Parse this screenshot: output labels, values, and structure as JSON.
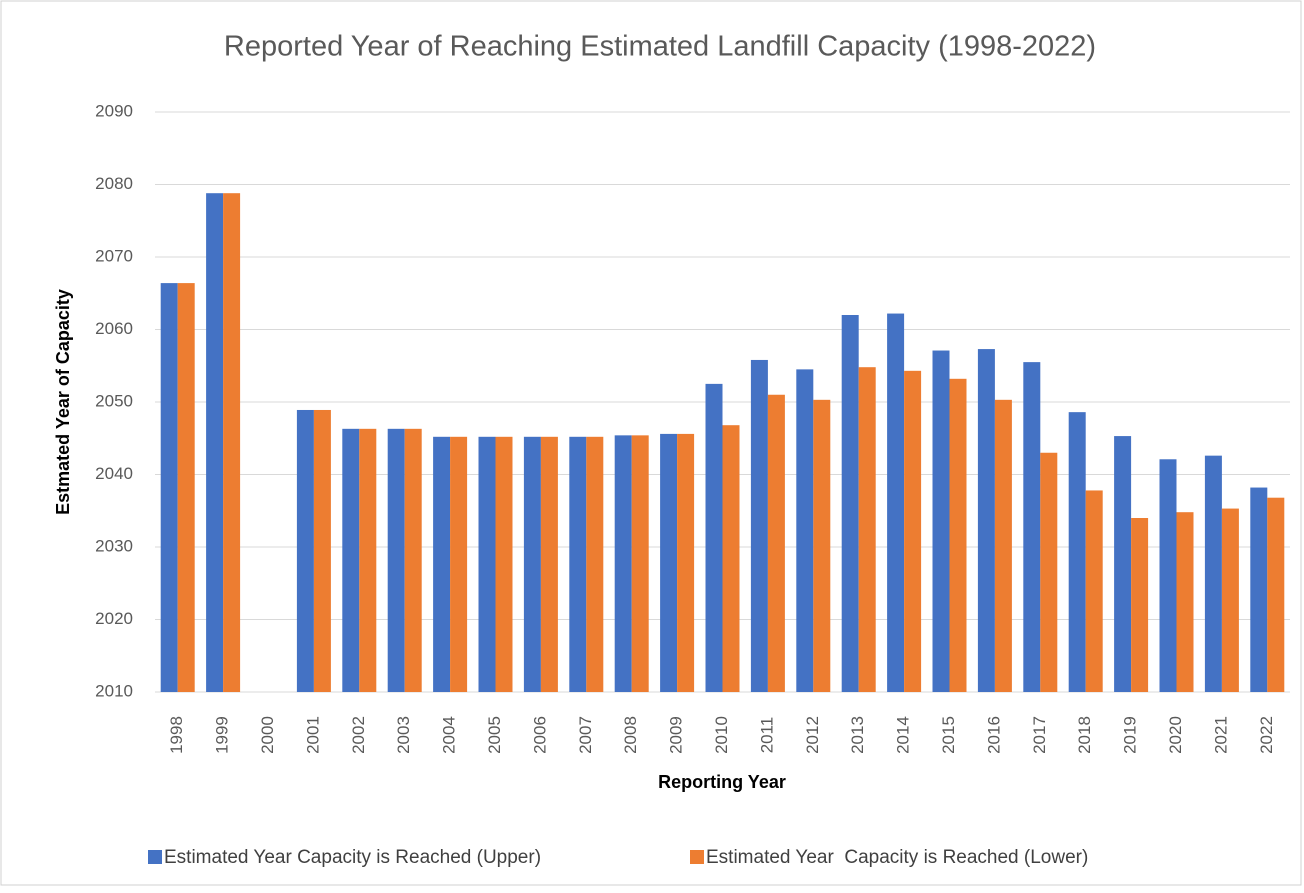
{
  "chart_data": {
    "type": "bar",
    "title": "Reported Year of Reaching Estimated Landfill Capacity  (1998-2022)",
    "x_label": "Reporting Year",
    "y_label": "Estmated Year of Capacity",
    "categories": [
      "1998",
      "1999",
      "2000",
      "2001",
      "2002",
      "2003",
      "2004",
      "2005",
      "2006",
      "2007",
      "2008",
      "2009",
      "2010",
      "2011",
      "2012",
      "2013",
      "2014",
      "2015",
      "2016",
      "2017",
      "2018",
      "2019",
      "2020",
      "2021",
      "2022"
    ],
    "series": [
      {
        "name": "Estimated Year Capacity is Reached (Upper)",
        "color": "#4472c4",
        "values": [
          2066.4,
          2078.8,
          null,
          2048.9,
          2046.3,
          2046.3,
          2045.2,
          2045.2,
          2045.2,
          2045.2,
          2045.4,
          2045.6,
          2052.5,
          2055.8,
          2054.5,
          2062.0,
          2062.2,
          2057.1,
          2057.3,
          2055.5,
          2048.6,
          2045.3,
          2042.1,
          2042.6,
          2038.2
        ]
      },
      {
        "name": "Estimated Year  Capacity is Reached (Lower)",
        "color": "#ed7d31",
        "values": [
          2066.4,
          2078.8,
          null,
          2048.9,
          2046.3,
          2046.3,
          2045.2,
          2045.2,
          2045.2,
          2045.2,
          2045.4,
          2045.6,
          2046.8,
          2051.0,
          2050.3,
          2054.8,
          2054.3,
          2053.2,
          2050.3,
          2043.0,
          2037.8,
          2034.0,
          2034.8,
          2035.3,
          2036.8
        ]
      }
    ],
    "ylim": [
      2010,
      2090
    ],
    "yticks": [
      2010,
      2020,
      2030,
      2040,
      2050,
      2060,
      2070,
      2080,
      2090
    ],
    "grid": true,
    "legend": "bottom"
  }
}
